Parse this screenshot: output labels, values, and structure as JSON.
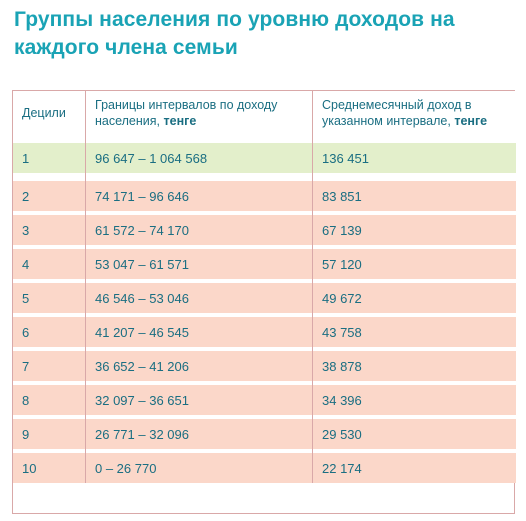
{
  "title": "Группы населения по уровню доходов на каждого члена семьи",
  "table": {
    "headers": {
      "decile": "Децили",
      "bounds_text": "Границы интервалов по доходу населения, ",
      "bounds_unit": "тенге",
      "avg_text": "Среднемесячный доход в указанном интервале, ",
      "avg_unit": "тенге"
    },
    "rows": [
      {
        "decile": "1",
        "bounds": "96 647 – 1 064 568",
        "avg": "136 451"
      },
      {
        "decile": "2",
        "bounds": "74 171 – 96 646",
        "avg": "83 851"
      },
      {
        "decile": "3",
        "bounds": "61 572 – 74 170",
        "avg": "67 139"
      },
      {
        "decile": "4",
        "bounds": "53 047 – 61 571",
        "avg": "57 120"
      },
      {
        "decile": "5",
        "bounds": "46 546 – 53 046",
        "avg": "49 672"
      },
      {
        "decile": "6",
        "bounds": "41 207 – 46 545",
        "avg": "43 758"
      },
      {
        "decile": "7",
        "bounds": "36 652 – 41 206",
        "avg": "38 878"
      },
      {
        "decile": "8",
        "bounds": "32 097 – 36 651",
        "avg": "34 396"
      },
      {
        "decile": "9",
        "bounds": "26 771 – 32 096",
        "avg": "29 530"
      },
      {
        "decile": "10",
        "bounds": "0 – 26 770",
        "avg": "22 174"
      }
    ]
  },
  "colors": {
    "title": "#1aa3b5",
    "text": "#1a6e82",
    "row_highlight": "#e3efcb",
    "row_fill": "#fbd7c9",
    "border": "#d9a8a8"
  }
}
